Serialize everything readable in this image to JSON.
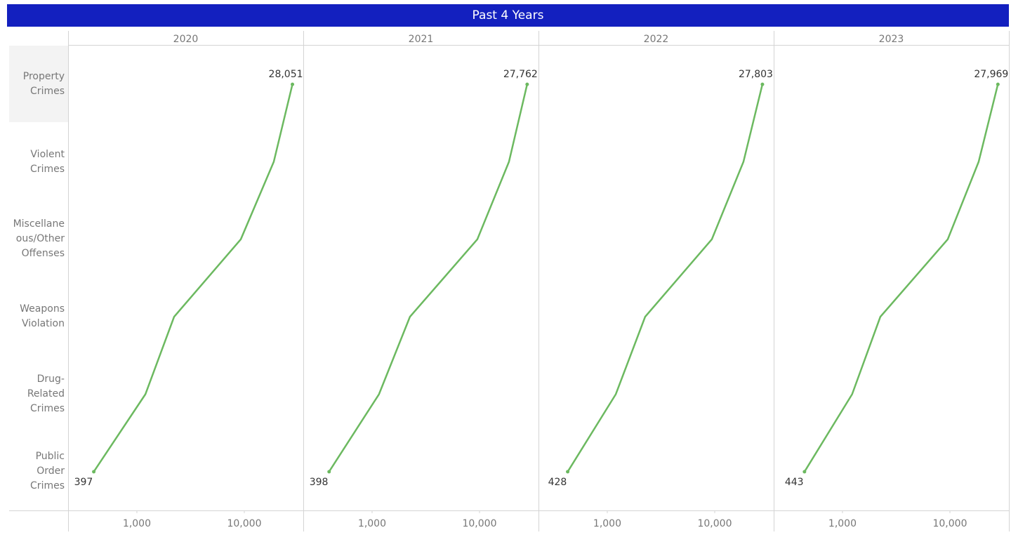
{
  "chart_data": {
    "type": "line",
    "title": "Past 4 Years",
    "categories": [
      "Property Crimes",
      "Violent Crimes",
      "Miscellaneous/Other Offenses",
      "Weapons Violation",
      "Drug-Related Crimes",
      "Public Order Crimes"
    ],
    "series": [
      {
        "name": "2020",
        "color": "#6cb960",
        "values": [
          28051,
          18800,
          9270,
          2220,
          1200,
          397
        ],
        "value_labels": [
          "28,051",
          null,
          null,
          null,
          null,
          "397"
        ]
      },
      {
        "name": "2021",
        "color": "#6cb960",
        "values": [
          27762,
          18800,
          9550,
          2250,
          1160,
          398
        ],
        "value_labels": [
          "27,762",
          null,
          null,
          null,
          null,
          "398"
        ]
      },
      {
        "name": "2022",
        "color": "#6cb960",
        "values": [
          27803,
          18500,
          9400,
          2250,
          1200,
          428
        ],
        "value_labels": [
          "27,803",
          null,
          null,
          null,
          null,
          "428"
        ]
      },
      {
        "name": "2023",
        "color": "#6cb960",
        "values": [
          27969,
          18500,
          9550,
          2250,
          1230,
          443
        ],
        "value_labels": [
          "27,969",
          null,
          null,
          null,
          null,
          "443"
        ]
      }
    ],
    "xlim": [
      229,
      35400
    ],
    "xticks": [
      {
        "value": 1000,
        "label": "1,000"
      },
      {
        "value": 10000,
        "label": "10,000"
      }
    ],
    "xscale": "log"
  }
}
